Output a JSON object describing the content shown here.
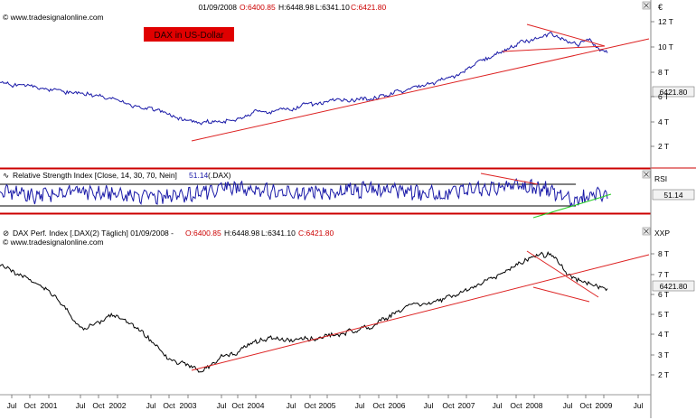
{
  "header": {
    "copyright": "© www.tradesignalonline.com",
    "date": "01/09/2008",
    "o": "O:6400.85",
    "h": "H:6448.98",
    "l": "L:6341.10",
    "c": "C:6421.80"
  },
  "panel1": {
    "badge": "DAX in US-Dollar",
    "scale_label": "€",
    "yticks": [
      "12 T",
      "10 T",
      "8 T",
      "6 T",
      "4 T",
      "2 T"
    ],
    "price_tag": "6421.80"
  },
  "panel2": {
    "title": "Relative Strength Index [Close, 14, 30, 70, Nein]",
    "value": "51.14",
    "suffix": "(.DAX)",
    "scale_label": "RSI",
    "value_tag": "51.14"
  },
  "panel3": {
    "title": "DAX Perf. Index [.DAX(2) Täglich] 01/09/2008 -",
    "o": "O:6400.85",
    "h": "H:6448.98",
    "l": "L:6341.10",
    "c": "C:6421.80",
    "copyright": "© www.tradesignalonline.com",
    "scale_label": "XXP",
    "yticks": [
      "8 T",
      "7 T",
      "6 T",
      "5 T",
      "4 T",
      "3 T",
      "2 T"
    ],
    "price_tag": "6421.80"
  },
  "xaxis": [
    "Jul",
    "Oct",
    "2001",
    "Jul",
    "Oct",
    "2002",
    "Jul",
    "Oct",
    "2003",
    "Jul",
    "Oct",
    "2004",
    "Jul",
    "Oct",
    "2005",
    "Jul",
    "Oct",
    "2006",
    "Jul",
    "Oct",
    "2007",
    "Jul",
    "Oct",
    "2008",
    "Jul",
    "Oct",
    "2009",
    "Jul"
  ],
  "colors": {
    "usd_line": "#1a1aa8",
    "eur_line": "#000000",
    "trend": "#dd2222",
    "support": "#22cc22",
    "badge_bg": "#e00000"
  },
  "chart_data": [
    {
      "type": "line",
      "title": "DAX in US-Dollar",
      "ylim": [
        0,
        12.5
      ],
      "x": [
        2000.5,
        2001.0,
        2001.5,
        2002.0,
        2002.5,
        2003.0,
        2003.5,
        2004.0,
        2004.5,
        2005.0,
        2005.5,
        2006.0,
        2006.5,
        2007.0,
        2007.5,
        2007.9,
        2008.2,
        2008.4,
        2008.67
      ],
      "series": [
        {
          "values": [
            6.8,
            6.4,
            5.9,
            5.4,
            4.5,
            3.3,
            3.3,
            4.2,
            4.6,
            5.1,
            5.4,
            6.2,
            7.1,
            8.8,
            10.4,
            11.2,
            10.0,
            10.6,
            9.3
          ]
        }
      ]
    },
    {
      "type": "line",
      "title": "Relative Strength Index [Close, 14, 30, 70, Nein]",
      "ylim": [
        0,
        100
      ],
      "x": [
        2000.5,
        2001.0,
        2001.5,
        2002.0,
        2002.5,
        2003.0,
        2003.5,
        2004.0,
        2004.5,
        2005.0,
        2005.5,
        2006.0,
        2006.5,
        2007.0,
        2007.5,
        2007.9,
        2008.2,
        2008.4,
        2008.67
      ],
      "series": [
        {
          "values": [
            52,
            44,
            55,
            48,
            38,
            46,
            62,
            58,
            50,
            56,
            60,
            54,
            48,
            62,
            70,
            58,
            30,
            46,
            51.14
          ]
        }
      ]
    },
    {
      "type": "line",
      "title": "DAX Perf. Index [.DAX(2) Täglich]",
      "ylim": [
        1.6,
        8.8
      ],
      "x": [
        2000.5,
        2001.0,
        2001.3,
        2001.6,
        2002.0,
        2002.4,
        2002.8,
        2003.2,
        2003.6,
        2004.0,
        2004.5,
        2005.0,
        2005.5,
        2006.0,
        2006.5,
        2007.0,
        2007.5,
        2007.9,
        2008.2,
        2008.4,
        2008.67
      ],
      "series": [
        {
          "values": [
            7.5,
            6.6,
            5.8,
            4.4,
            5.2,
            4.3,
            3.0,
            2.6,
            3.3,
            4.0,
            3.9,
            4.2,
            4.6,
            5.6,
            5.9,
            6.7,
            7.6,
            8.0,
            6.8,
            6.6,
            6.42
          ]
        }
      ]
    }
  ]
}
